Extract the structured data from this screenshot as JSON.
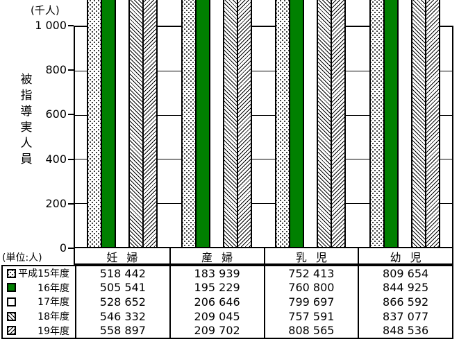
{
  "header": {
    "unit_label": "(千人)"
  },
  "y_axis": {
    "title": "被指導実人員",
    "tick_labels": [
      "1 000",
      "800",
      "600",
      "400",
      "200",
      "0"
    ]
  },
  "table": {
    "unit_label": "(単位:人)"
  },
  "colors": {
    "series_green": "#008000",
    "line": "#000000",
    "background": "#ffffff"
  },
  "chart_data": {
    "type": "bar",
    "title": "",
    "ylabel": "被指導実人員",
    "y_unit_label": "(千人)",
    "categories": [
      "妊 婦",
      "産 婦",
      "乳 児",
      "幼 児"
    ],
    "series": [
      {
        "name": "平成15年度",
        "pattern": "dots",
        "values": [
          518442,
          183939,
          752413,
          809654
        ]
      },
      {
        "name": "16年度",
        "pattern": "solid-green",
        "values": [
          505541,
          195229,
          760800,
          844925
        ]
      },
      {
        "name": "17年度",
        "pattern": "plain-white",
        "values": [
          528652,
          206646,
          799697,
          866592
        ]
      },
      {
        "name": "18年度",
        "pattern": "diagonal-backslash",
        "values": [
          546332,
          209045,
          757591,
          837077
        ]
      },
      {
        "name": "19年度",
        "pattern": "diagonal-slash",
        "values": [
          558897,
          209702,
          808565,
          848536
        ]
      }
    ],
    "ylim": [
      0,
      1000
    ],
    "grid_step": 200,
    "grid": true,
    "legend_position": "table-rows-left",
    "value_format": "space-thousands",
    "table_unit_label": "(単位:人)"
  }
}
